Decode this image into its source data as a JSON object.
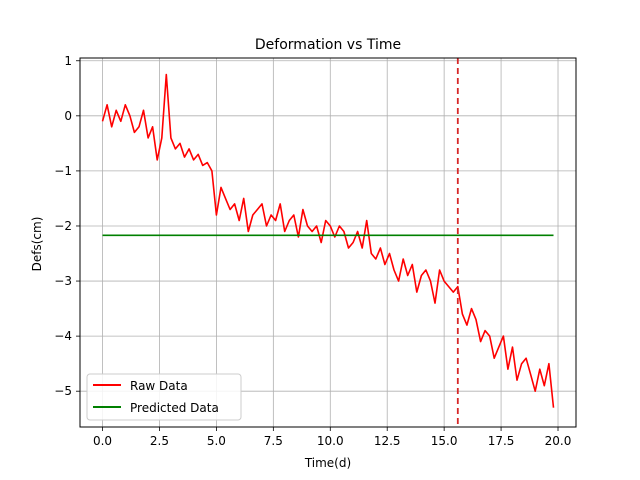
{
  "chart_data": {
    "type": "line",
    "title": "Deformation vs Time",
    "xlabel": "Time(d)",
    "ylabel": "Defs(cm)",
    "xlim": [
      -0.99,
      20.79
    ],
    "ylim": [
      -5.65,
      1.05
    ],
    "xticks": [
      0.0,
      2.5,
      5.0,
      7.5,
      10.0,
      12.5,
      15.0,
      17.5,
      20.0
    ],
    "xtick_labels": [
      "0.0",
      "2.5",
      "5.0",
      "7.5",
      "10.0",
      "12.5",
      "15.0",
      "17.5",
      "20.0"
    ],
    "yticks": [
      1,
      0,
      -1,
      -2,
      -3,
      -4,
      -5
    ],
    "ytick_labels": [
      "1",
      "0",
      "−1",
      "−2",
      "−3",
      "−4",
      "−5"
    ],
    "grid": true,
    "legend_position": "lower-left",
    "vline": {
      "x": 15.6,
      "color": "#d62728",
      "style": "dashed"
    },
    "series": [
      {
        "name": "Raw Data",
        "color": "#ff0000",
        "x": [
          0.0,
          0.2,
          0.4,
          0.6,
          0.8,
          1.0,
          1.2,
          1.4,
          1.6,
          1.8,
          2.0,
          2.2,
          2.4,
          2.6,
          2.8,
          3.0,
          3.2,
          3.4,
          3.6,
          3.8,
          4.0,
          4.2,
          4.4,
          4.6,
          4.8,
          5.0,
          5.2,
          5.4,
          5.6,
          5.8,
          6.0,
          6.2,
          6.4,
          6.6,
          6.8,
          7.0,
          7.2,
          7.4,
          7.6,
          7.8,
          8.0,
          8.2,
          8.4,
          8.6,
          8.8,
          9.0,
          9.2,
          9.4,
          9.6,
          9.8,
          10.0,
          10.2,
          10.4,
          10.6,
          10.8,
          11.0,
          11.2,
          11.4,
          11.6,
          11.8,
          12.0,
          12.2,
          12.4,
          12.6,
          12.8,
          13.0,
          13.2,
          13.4,
          13.6,
          13.8,
          14.0,
          14.2,
          14.4,
          14.6,
          14.8,
          15.0,
          15.2,
          15.4,
          15.6,
          15.8,
          16.0,
          16.2,
          16.4,
          16.6,
          16.8,
          17.0,
          17.2,
          17.4,
          17.6,
          17.8,
          18.0,
          18.2,
          18.4,
          18.6,
          18.8,
          19.0,
          19.2,
          19.4,
          19.6,
          19.8
        ],
        "y": [
          -0.1,
          0.2,
          -0.2,
          0.1,
          -0.1,
          0.2,
          0.0,
          -0.3,
          -0.2,
          0.1,
          -0.4,
          -0.2,
          -0.8,
          -0.4,
          0.75,
          -0.4,
          -0.6,
          -0.5,
          -0.75,
          -0.6,
          -0.8,
          -0.7,
          -0.9,
          -0.85,
          -1.0,
          -1.8,
          -1.3,
          -1.5,
          -1.7,
          -1.6,
          -1.9,
          -1.5,
          -2.1,
          -1.8,
          -1.7,
          -1.6,
          -2.0,
          -1.8,
          -1.9,
          -1.6,
          -2.1,
          -1.9,
          -1.8,
          -2.2,
          -1.7,
          -2.0,
          -2.1,
          -2.0,
          -2.3,
          -1.9,
          -2.0,
          -2.2,
          -2.0,
          -2.1,
          -2.4,
          -2.3,
          -2.1,
          -2.4,
          -1.9,
          -2.5,
          -2.6,
          -2.4,
          -2.7,
          -2.5,
          -2.8,
          -3.0,
          -2.6,
          -2.9,
          -2.7,
          -3.2,
          -2.9,
          -2.8,
          -3.0,
          -3.4,
          -2.8,
          -3.0,
          -3.1,
          -3.2,
          -3.1,
          -3.6,
          -3.8,
          -3.5,
          -3.7,
          -4.1,
          -3.9,
          -4.0,
          -4.4,
          -4.2,
          -4.0,
          -4.6,
          -4.2,
          -4.8,
          -4.5,
          -4.4,
          -4.7,
          -5.0,
          -4.6,
          -4.9,
          -4.5,
          -5.3
        ]
      },
      {
        "name": "Predicted Data",
        "color": "#008000",
        "x": [
          0.0,
          19.8
        ],
        "y": [
          -2.17,
          -2.17
        ]
      }
    ]
  }
}
